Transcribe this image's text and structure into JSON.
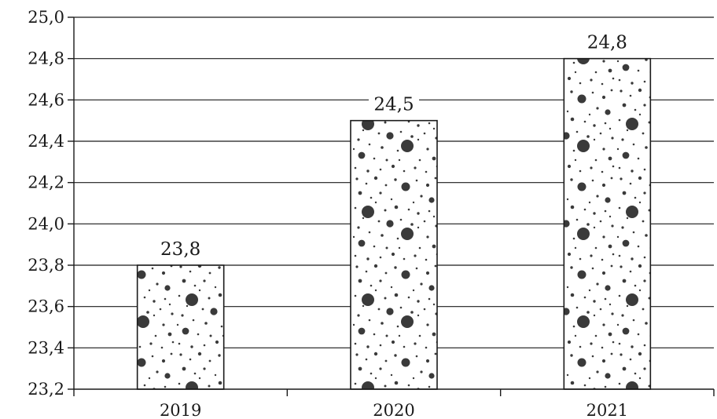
{
  "chart_data": {
    "type": "bar",
    "categories": [
      "2019",
      "2020",
      "2021"
    ],
    "values": [
      23.8,
      24.5,
      24.8
    ],
    "data_labels": [
      "23,8",
      "24,5",
      "24,8"
    ],
    "ylim": [
      23.2,
      25.0
    ],
    "y_ticks": [
      23.2,
      23.4,
      23.6,
      23.8,
      24.0,
      24.2,
      24.4,
      24.6,
      24.8,
      25.0
    ],
    "y_tick_labels": [
      "23,2",
      "23,4",
      "23,6",
      "23,8",
      "24,0",
      "24,2",
      "24,4",
      "24,6",
      "24,8",
      "25,0"
    ],
    "grid": true,
    "bar_fill_pattern": "dots",
    "title": "",
    "xlabel": "",
    "ylabel": ""
  },
  "colors": {
    "ink": "#1a1a1a",
    "background": "#ffffff",
    "dots": "#3a3a3a"
  }
}
